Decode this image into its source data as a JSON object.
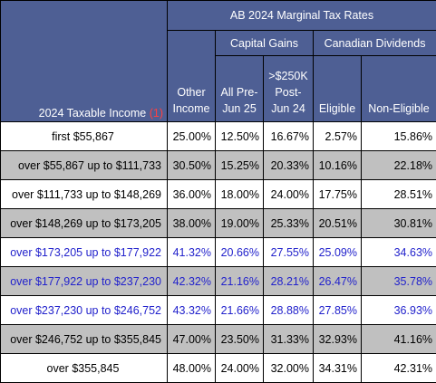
{
  "header": {
    "main_title": "AB 2024 Marginal Tax Rates",
    "corner_label": "2024 Taxable Income",
    "corner_footnote": "(1)",
    "other_income_line1": "Other",
    "other_income_line2": "Income",
    "capital_gains": "Capital Gains",
    "canadian_dividends": "Canadian Dividends",
    "cg_col1_line1": "All Pre-",
    "cg_col1_line2": "Jun 25",
    "cg_col2_line1": ">$250K",
    "cg_col2_line2": "Post-",
    "cg_col2_line3": "Jun 24",
    "eligible": "Eligible",
    "non_eligible": "Non-Eligible"
  },
  "rows": [
    {
      "income": "first $55,867",
      "other": "25.00%",
      "cg_pre": "12.50%",
      "cg_post": "16.67%",
      "eligible": "2.57%",
      "non_eligible": "15.86%"
    },
    {
      "income": "over $55,867 up to $111,733",
      "other": "30.50%",
      "cg_pre": "15.25%",
      "cg_post": "20.33%",
      "eligible": "10.16%",
      "non_eligible": "22.18%"
    },
    {
      "income": "over $111,733 up to $148,269",
      "other": "36.00%",
      "cg_pre": "18.00%",
      "cg_post": "24.00%",
      "eligible": "17.75%",
      "non_eligible": "28.51%"
    },
    {
      "income": "over $148,269 up to $173,205",
      "other": "38.00%",
      "cg_pre": "19.00%",
      "cg_post": "25.33%",
      "eligible": "20.51%",
      "non_eligible": "30.81%"
    },
    {
      "income": "over $173,205 up to $177,922",
      "other": "41.32%",
      "cg_pre": "20.66%",
      "cg_post": "27.55%",
      "eligible": "25.09%",
      "non_eligible": "34.63%"
    },
    {
      "income": "over $177,922 up to $237,230",
      "other": "42.32%",
      "cg_pre": "21.16%",
      "cg_post": "28.21%",
      "eligible": "26.47%",
      "non_eligible": "35.78%"
    },
    {
      "income": "over $237,230 up to $246,752",
      "other": "43.32%",
      "cg_pre": "21.66%",
      "cg_post": "28.88%",
      "eligible": "27.85%",
      "non_eligible": "36.93%"
    },
    {
      "income": "over $246,752 up to $355,845",
      "other": "47.00%",
      "cg_pre": "23.50%",
      "cg_post": "31.33%",
      "eligible": "32.93%",
      "non_eligible": "41.16%"
    },
    {
      "income": "over $355,845",
      "other": "48.00%",
      "cg_pre": "24.00%",
      "cg_post": "32.00%",
      "eligible": "34.31%",
      "non_eligible": "42.31%"
    }
  ],
  "colors": {
    "header_bg": "#4e5f94",
    "grey_row": "#c0c0c0",
    "blue_text": "#2222cc",
    "footnote_red": "#ff4040"
  }
}
